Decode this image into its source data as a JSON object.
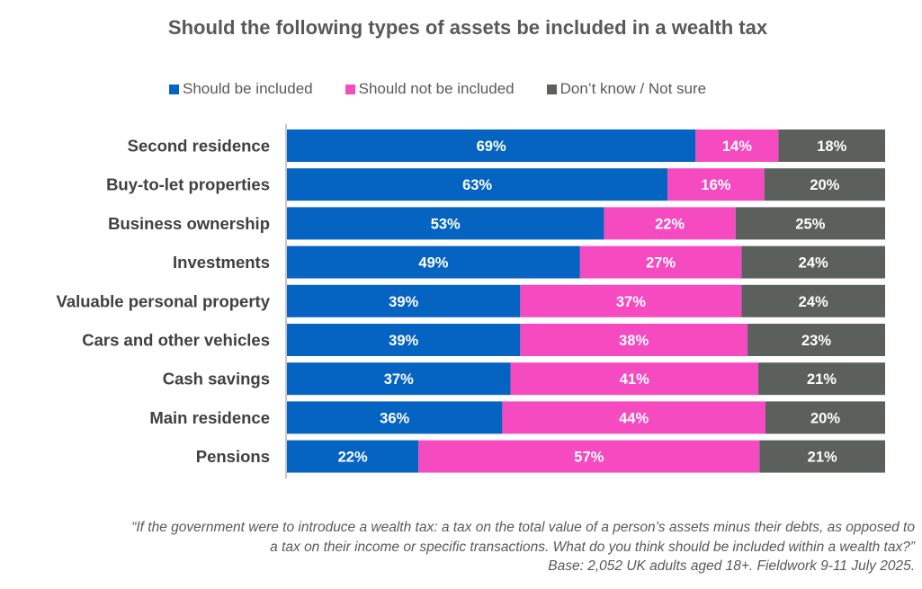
{
  "colors": {
    "included": "#0563C1",
    "not_included": "#F54AC0",
    "dont_know": "#5B605D",
    "text_dark": "#404040",
    "text_grey": "#595959",
    "label_on_dark": "#FFFFFF"
  },
  "chart_data": {
    "type": "bar",
    "orientation": "horizontal",
    "stacked": true,
    "title": "Should the following types of assets be included in a wealth tax",
    "legend_position": "top",
    "xlim": [
      0,
      100
    ],
    "categories": [
      "Second residence",
      "Buy-to-let properties",
      "Business ownership",
      "Investments",
      "Valuable personal property",
      "Cars and other vehicles",
      "Cash savings",
      "Main residence",
      "Pensions"
    ],
    "series": [
      {
        "name": "Should be included",
        "color_key": "included",
        "label_color": "#FFFFFF",
        "values": [
          69,
          63,
          53,
          49,
          39,
          39,
          37,
          36,
          22
        ]
      },
      {
        "name": "Should not be included",
        "color_key": "not_included",
        "label_color": "#FFFFFF",
        "values": [
          14,
          16,
          22,
          27,
          37,
          38,
          41,
          44,
          57
        ]
      },
      {
        "name": "Don’t know / Not sure",
        "color_key": "dont_know",
        "label_color": "#FFFFFF",
        "values": [
          18,
          20,
          25,
          24,
          24,
          23,
          21,
          20,
          21
        ]
      }
    ]
  },
  "footnote": {
    "question_line1": "“If the government were to introduce a wealth tax: a tax on the total value of a person’s assets minus their debts, as opposed to",
    "question_line2": "a tax on their income or specific transactions. What do you think should be included within a wealth tax?”",
    "base": "Base: 2,052 UK adults aged 18+. Fieldwork 9-11 July 2025."
  }
}
